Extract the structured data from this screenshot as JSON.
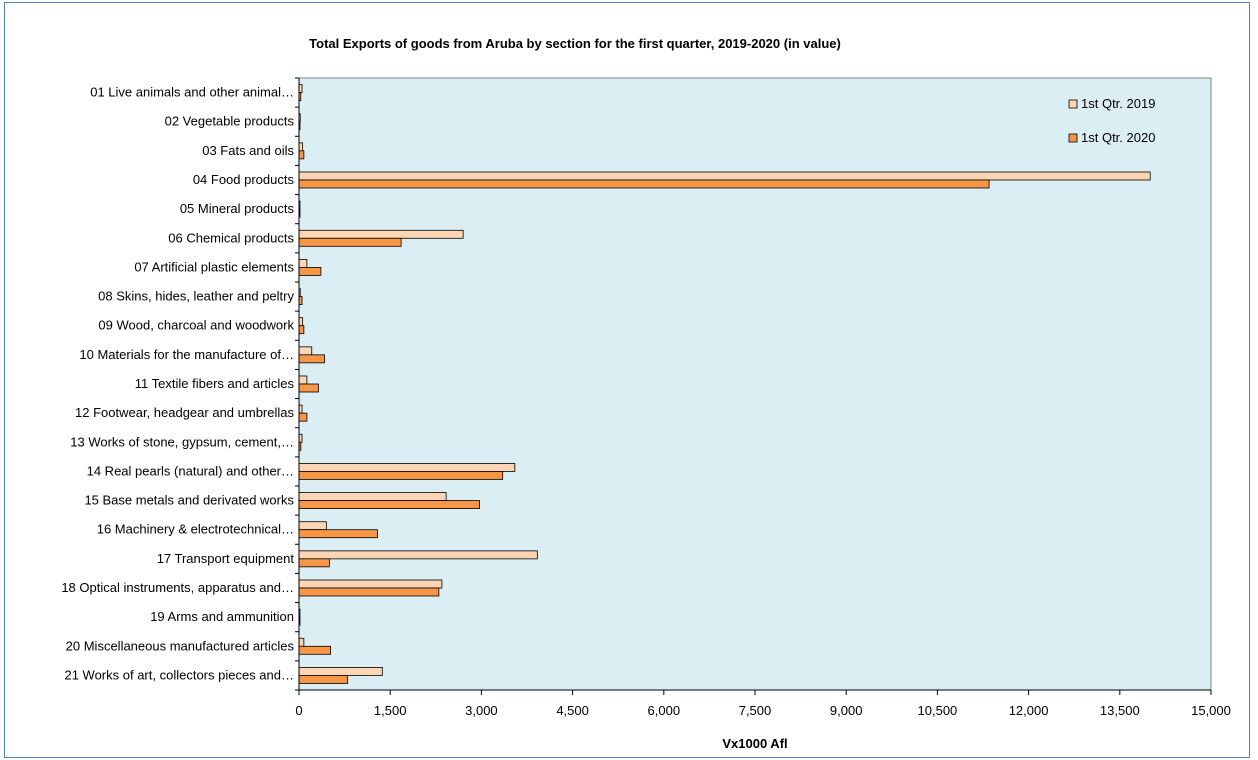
{
  "chart_data": {
    "type": "bar",
    "orientation": "horizontal",
    "title": "Total Exports of goods from Aruba by section for the first quarter, 2019-2020 (in value)",
    "xlabel": "Vx1000 Afl",
    "ylabel": "",
    "xlim": [
      0,
      15000
    ],
    "x_ticks": [
      "0",
      "1,500",
      "3,000",
      "4,500",
      "6,000",
      "7,500",
      "9,000",
      "10,500",
      "12,000",
      "13,500",
      "15,000"
    ],
    "grid": false,
    "legend_position": "top-right",
    "categories": [
      "01 Live animals and other animal…",
      "02 Vegetable products",
      "03 Fats and oils",
      "04 Food products",
      "05 Mineral products",
      "06 Chemical products",
      "07 Artificial plastic elements",
      "08 Skins, hides, leather and peltry",
      "09 Wood, charcoal and woodwork",
      "10 Materials for the manufacture of…",
      "11 Textile fibers and articles",
      "12 Footwear, headgear and umbrellas",
      "13 Works of stone, gypsum, cement,…",
      "14 Real pearls (natural) and other…",
      "15 Base metals and derivated works",
      "16 Machinery & electrotechnical…",
      "17 Transport equipment",
      "18 Optical instruments, apparatus and…",
      "19 Arms and ammunition",
      "20 Miscellaneous manufactured articles",
      "21 Works of art, collectors pieces and…"
    ],
    "series": [
      {
        "name": "1st Qtr. 2019",
        "color": "#fcd5b4",
        "values": [
          50,
          20,
          60,
          14000,
          10,
          2700,
          130,
          20,
          60,
          210,
          130,
          50,
          50,
          3550,
          2420,
          450,
          3920,
          2350,
          15,
          80,
          1370
        ]
      },
      {
        "name": "1st Qtr. 2020",
        "color": "#f79646",
        "values": [
          30,
          15,
          80,
          11350,
          10,
          1680,
          360,
          50,
          80,
          420,
          320,
          130,
          30,
          3350,
          2970,
          1290,
          500,
          2300,
          15,
          520,
          800
        ]
      }
    ],
    "plot_background": "#daeef3",
    "axis_color": "#000000"
  }
}
